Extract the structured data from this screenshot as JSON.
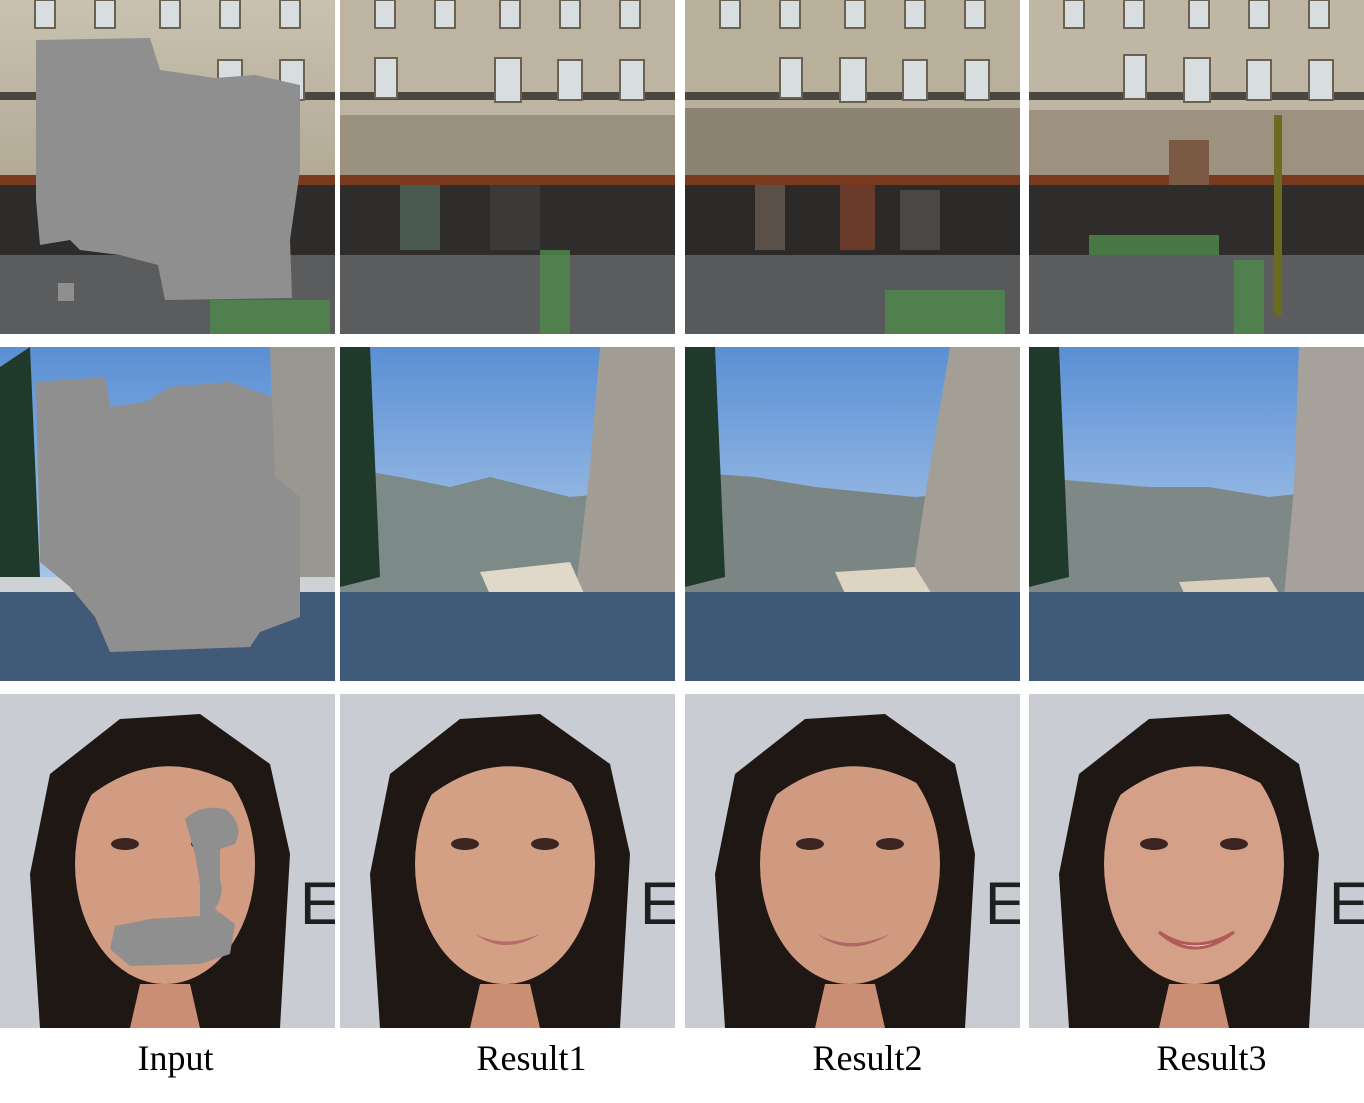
{
  "figure": {
    "columns": [
      {
        "label": "Input"
      },
      {
        "label": "Result1"
      },
      {
        "label": "Result2"
      },
      {
        "label": "Result3"
      }
    ],
    "rows": [
      {
        "scene": "street-facade"
      },
      {
        "scene": "mountain-lake"
      },
      {
        "scene": "face-portrait"
      }
    ]
  },
  "colors": {
    "mask_gray": "#8f8f8f",
    "background": "#ffffff"
  }
}
